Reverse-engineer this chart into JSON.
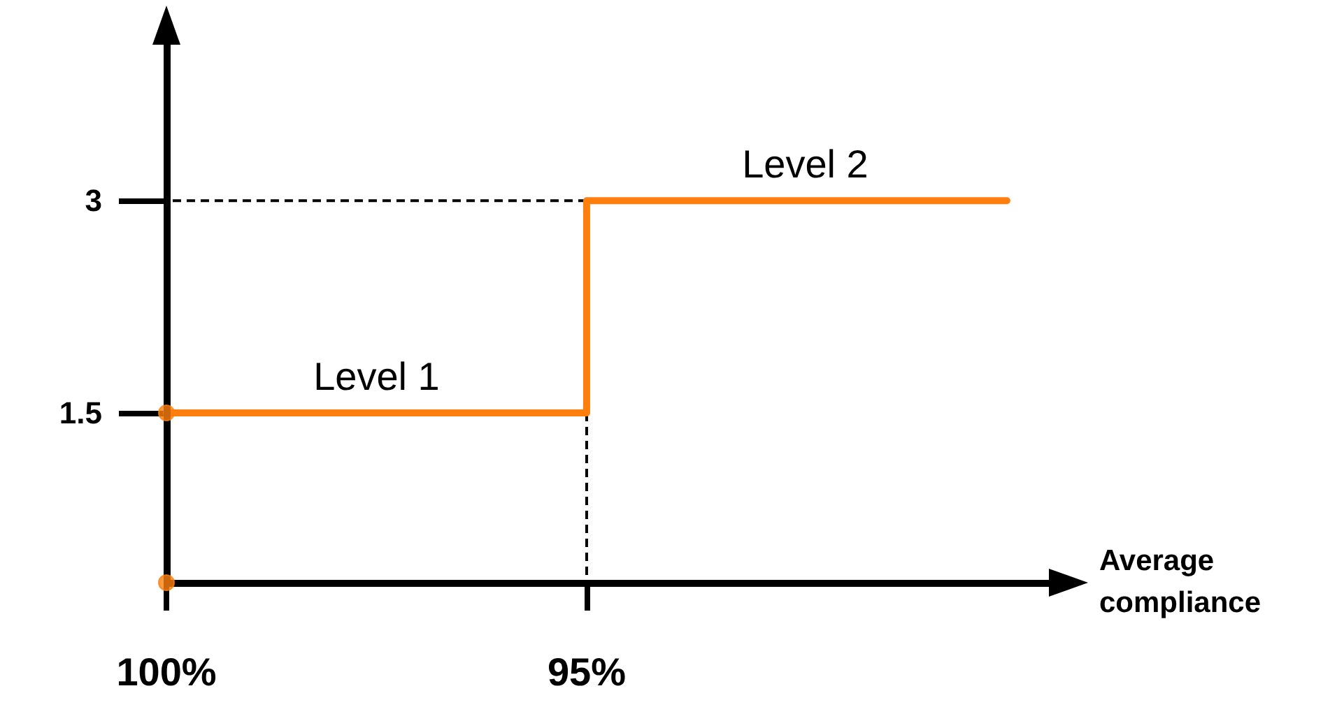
{
  "chart_data": {
    "type": "step",
    "xlabel": "Average compliance",
    "xlim": [
      100,
      89.5
    ],
    "ylim": [
      0.3,
      4.3
    ],
    "ref_lines": [
      {
        "axis": "x",
        "value": 100,
        "color": "#000000",
        "line_style": "solid"
      },
      {
        "axis": "y",
        "value": 0.3,
        "color": "#000000",
        "line_style": "solid"
      }
    ],
    "xticks": [
      {
        "value": 100,
        "label": "100%"
      },
      {
        "value": 95,
        "label": "95%"
      }
    ],
    "yticks": [
      1.5,
      3
    ],
    "series": [
      {
        "color": "#ff7f0e",
        "x": [
          100,
          95,
          90
        ],
        "values": [
          1.5,
          3,
          3
        ],
        "marker": "none",
        "line_style": "solid"
      },
      {
        "type": "line",
        "color": "#000000",
        "x": [
          95,
          100
        ],
        "values": [
          3,
          3
        ],
        "marker": "none",
        "line_style": "dashed"
      },
      {
        "type": "line",
        "color": "#000000",
        "x": [
          95,
          95
        ],
        "values": [
          1.5,
          0.3
        ],
        "marker": "none",
        "line_style": "dashed"
      },
      {
        "type": "scatter",
        "color": "#ff7f0e",
        "x": [
          100,
          100
        ],
        "values": [
          1.5,
          0.3
        ],
        "marker": "circle"
      }
    ],
    "annotations": [
      {
        "text": "Level 1",
        "x": 97.5,
        "y": 1.5
      },
      {
        "text": "Level 2",
        "x": 92.4,
        "y": 3
      }
    ]
  }
}
